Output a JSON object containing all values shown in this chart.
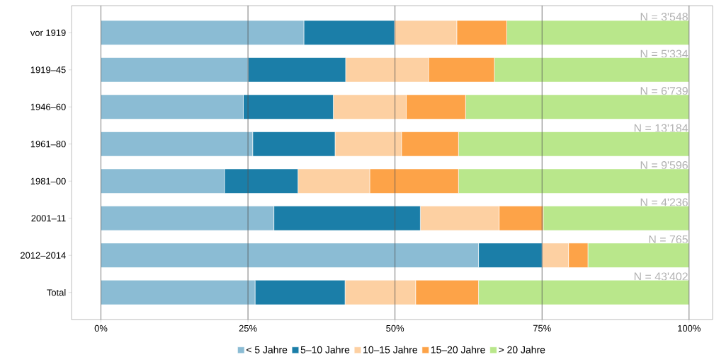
{
  "chart_data": {
    "type": "bar",
    "orientation": "horizontal",
    "stacked": true,
    "categories": [
      "vor 1919",
      "1919–45",
      "1946–60",
      "1961–80",
      "1981–00",
      "2001–11",
      "2012–2014",
      "Total"
    ],
    "series": [
      {
        "name": "< 5 Jahre",
        "color": "#8bbcd4",
        "values": [
          34.5,
          25.0,
          24.2,
          25.8,
          21.0,
          29.4,
          64.2,
          26.2
        ]
      },
      {
        "name": "5–10 Jahre",
        "color": "#1b7ea8",
        "values": [
          15.4,
          16.6,
          15.3,
          14.0,
          12.5,
          24.9,
          10.8,
          15.3
        ]
      },
      {
        "name": "10–15 Jahre",
        "color": "#fdd0a2",
        "values": [
          10.6,
          14.1,
          12.4,
          11.3,
          12.2,
          13.4,
          4.5,
          12.0
        ]
      },
      {
        "name": "15–20 Jahre",
        "color": "#fda348",
        "values": [
          8.5,
          11.2,
          10.1,
          9.7,
          15.1,
          7.5,
          3.3,
          10.7
        ]
      },
      {
        "name": "> 20 Jahre",
        "color": "#b9e78b",
        "values": [
          31.0,
          33.1,
          38.0,
          39.2,
          39.2,
          24.8,
          17.2,
          35.8
        ]
      }
    ],
    "xlim": [
      -5,
      104
    ],
    "xticks": [
      {
        "value": 0,
        "label": "0%"
      },
      {
        "value": 25,
        "label": "25%"
      },
      {
        "value": 50,
        "label": "50%"
      },
      {
        "value": 75,
        "label": "75%"
      },
      {
        "value": 100,
        "label": "100%"
      }
    ],
    "grid": "x",
    "legend": "bottom",
    "annotations": [
      "N = 3'548",
      "N = 5'334",
      "N = 6'739",
      "N = 13'184",
      "N = 9'596",
      "N = 4'236",
      "N = 765",
      "N = 43'402"
    ]
  }
}
